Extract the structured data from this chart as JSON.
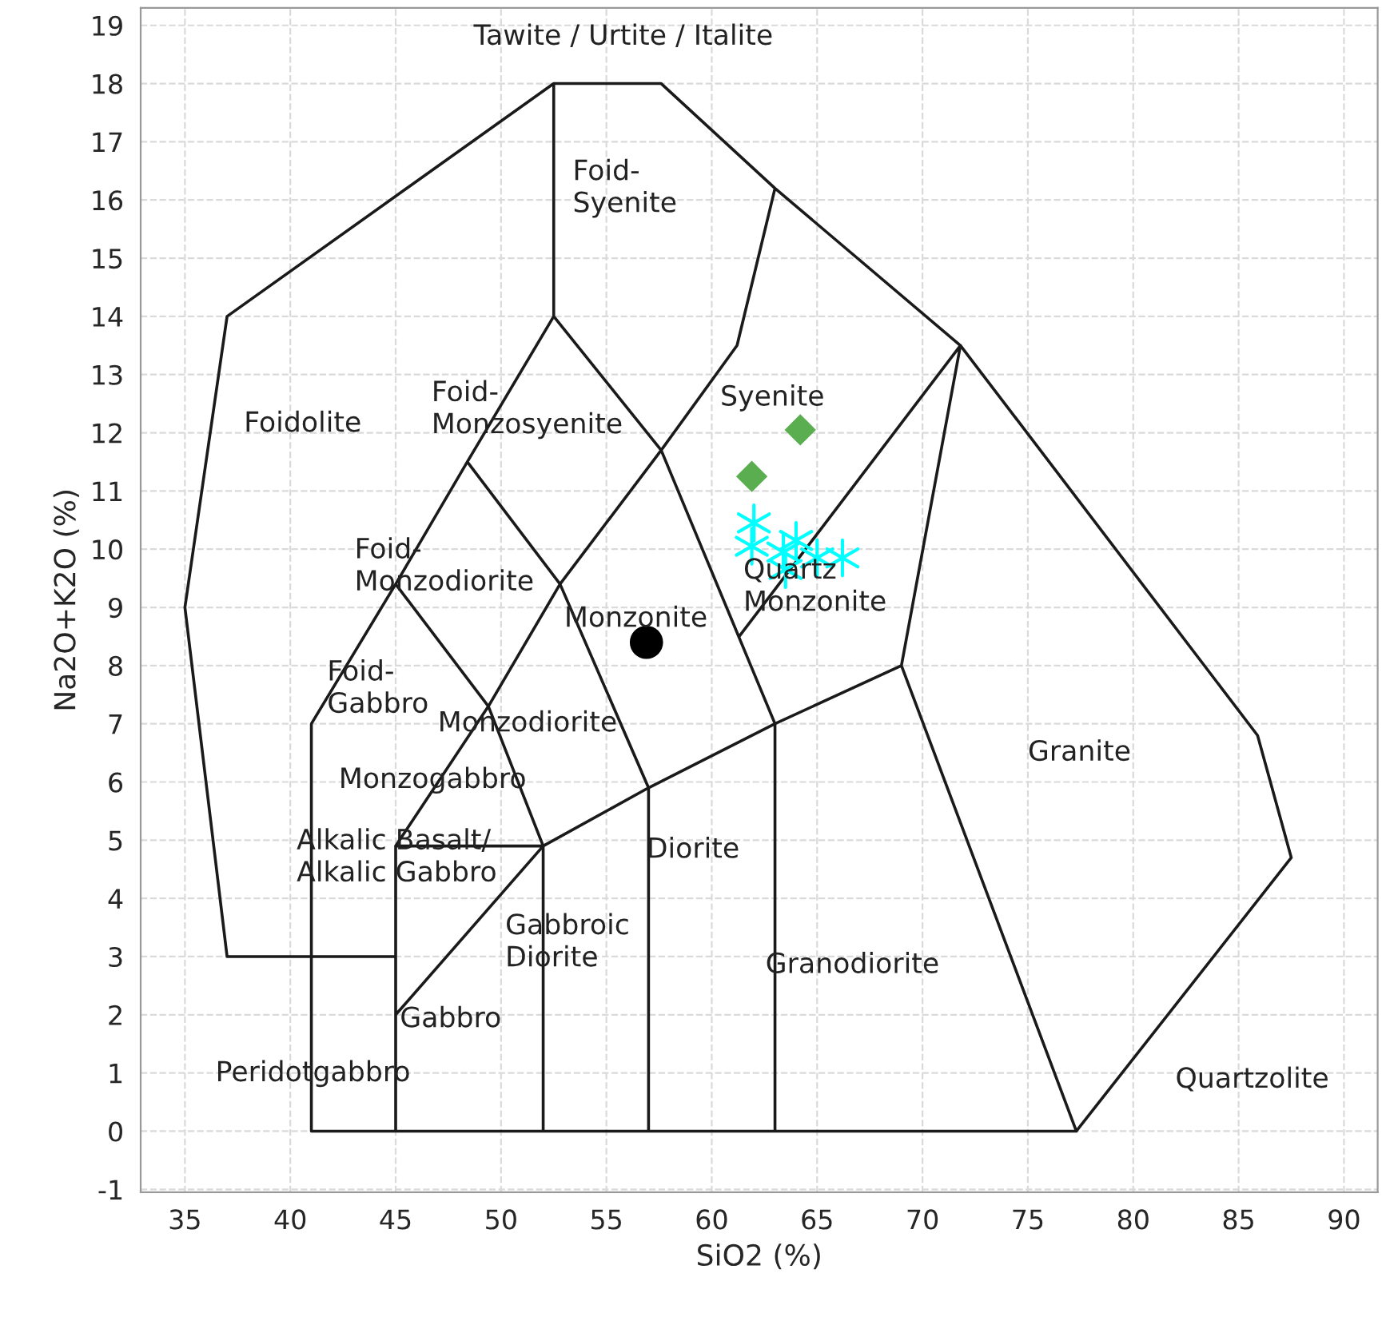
{
  "chart_data": {
    "type": "scatter",
    "xlabel": "SiO2 (%)",
    "ylabel": "Na2O+K2O (%)",
    "xlim": [
      32.9,
      91.6
    ],
    "xticks": [
      35,
      40,
      45,
      50,
      55,
      60,
      65,
      70,
      75,
      80,
      85,
      90
    ],
    "ylim": [
      -1.05,
      19.3
    ],
    "yticks": [
      -1,
      0,
      1,
      2,
      3,
      4,
      5,
      6,
      7,
      8,
      9,
      10,
      11,
      12,
      13,
      14,
      15,
      16,
      17,
      18,
      19
    ],
    "grid": true,
    "legend": false,
    "series": [
      {
        "type": "line",
        "color": "#1a1a1a",
        "x": [
          45,
          37,
          35,
          37,
          52.5,
          57.6,
          63,
          71.8,
          85.9,
          87.5,
          77.3,
          41,
          41,
          45,
          48.4,
          52.5,
          52.5,
          null,
          45,
          45,
          52,
          52,
          null,
          45,
          52,
          null,
          52,
          57,
          63,
          69,
          71.8,
          61.3,
          null,
          57,
          57,
          null,
          63,
          63,
          null,
          69,
          77.3,
          null,
          45,
          49.4,
          52.8,
          57.6,
          61.2,
          63,
          null,
          52.5,
          57.6,
          63,
          null,
          48.4,
          52.8,
          57,
          null,
          52,
          49.4,
          45
        ],
        "values": [
          3,
          3,
          9,
          14,
          18,
          18,
          16.2,
          13.5,
          6.8,
          4.7,
          0,
          0,
          7,
          9.4,
          11.5,
          14,
          18,
          null,
          0,
          4.9,
          4.9,
          0,
          null,
          2,
          4.9,
          null,
          4.9,
          5.9,
          7,
          8,
          13.5,
          8.5,
          null,
          0,
          5.9,
          null,
          0,
          7,
          null,
          8,
          0,
          null,
          4.9,
          7.3,
          9.4,
          11.7,
          13.5,
          16.2,
          null,
          14,
          11.7,
          7,
          null,
          11.5,
          9.4,
          5.9,
          null,
          4.9,
          7.3,
          9.4
        ]
      },
      {
        "marker": "circle",
        "color": "#000000",
        "x": [
          56.9
        ],
        "values": [
          8.4
        ]
      },
      {
        "marker": "diamond",
        "color": "#5aae4f",
        "x": [
          61.9,
          64.2
        ],
        "values": [
          11.25,
          12.05
        ]
      },
      {
        "marker": "cross",
        "color": "#00ffff",
        "x": [
          62.0,
          61.9,
          63.4,
          64.0,
          63.5,
          65.0,
          66.2
        ],
        "values": [
          10.45,
          10.05,
          9.95,
          10.15,
          9.65,
          9.85,
          9.85
        ]
      }
    ],
    "annotations": [
      "Tawite / Urtite / Italite",
      "Foid-\nSyenite",
      "Foidolite",
      "Foid-\nMonzosyenite",
      "Syenite",
      "Foid-\nMonzodiorite",
      "Monzonite",
      "Quartz\nMonzonite",
      "Foid-\nGabbro",
      "Monzodiorite",
      "Monzogabbro",
      "Granite",
      "Alkalic Basalt/\nAlkalic Gabbro",
      "Diorite",
      "Gabbroic\nDiorite",
      "Granodiorite",
      "Gabbro",
      "Peridotgabbro",
      "Quartzolite"
    ]
  }
}
